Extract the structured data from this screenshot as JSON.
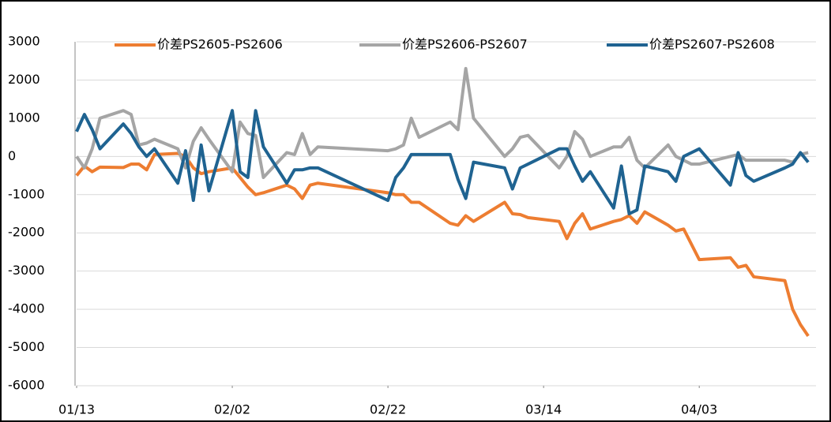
{
  "chart_data": {
    "type": "line",
    "x": [
      0,
      1,
      2,
      3,
      6,
      7,
      8,
      9,
      10,
      13,
      14,
      15,
      16,
      17,
      20,
      21,
      22,
      23,
      24,
      27,
      28,
      29,
      30,
      31,
      40,
      41,
      42,
      43,
      44,
      48,
      49,
      50,
      51,
      55,
      56,
      57,
      58,
      62,
      63,
      64,
      65,
      66,
      69,
      70,
      71,
      72,
      73,
      76,
      77,
      78,
      79,
      80,
      84,
      85,
      86,
      87,
      91,
      92,
      93,
      94
    ],
    "xlim": [
      0,
      95
    ],
    "xticks": [
      {
        "value": 0,
        "label": "01/13"
      },
      {
        "value": 20,
        "label": "02/02"
      },
      {
        "value": 40,
        "label": "02/22"
      },
      {
        "value": 60,
        "label": "03/14"
      },
      {
        "value": 80,
        "label": "04/03"
      }
    ],
    "ylim": [
      -6000,
      3000
    ],
    "yticks": [
      -6000,
      -5000,
      -4000,
      -3000,
      -2000,
      -1000,
      0,
      1000,
      2000,
      3000
    ],
    "grid": true,
    "legend": "top",
    "series": [
      {
        "name": "价差PS2605-PS2606",
        "color": "#ed7d31",
        "values": [
          -500,
          -250,
          -400,
          -280,
          -290,
          -200,
          -200,
          -350,
          50,
          80,
          0,
          -300,
          -450,
          -400,
          -300,
          -550,
          -800,
          -1000,
          -950,
          -750,
          -850,
          -1100,
          -750,
          -700,
          -950,
          -1000,
          -1000,
          -1200,
          -1200,
          -1750,
          -1800,
          -1550,
          -1700,
          -1200,
          -1500,
          -1520,
          -1600,
          -1700,
          -2150,
          -1750,
          -1500,
          -1900,
          -1700,
          -1650,
          -1550,
          -1750,
          -1450,
          -1800,
          -1950,
          -1900,
          -2300,
          -2700,
          -2650,
          -2900,
          -2850,
          -3150,
          -3250,
          -4000,
          -4400,
          -4700
        ]
      },
      {
        "name": "价差PS2606-PS2607",
        "color": "#a5a5a5",
        "values": [
          0,
          -300,
          200,
          1000,
          1200,
          1100,
          300,
          350,
          450,
          200,
          -300,
          400,
          750,
          450,
          -400,
          900,
          600,
          550,
          -550,
          100,
          50,
          600,
          50,
          250,
          150,
          200,
          300,
          1000,
          500,
          900,
          700,
          2300,
          1000,
          0,
          200,
          500,
          550,
          -300,
          0,
          650,
          450,
          0,
          250,
          250,
          500,
          -100,
          -300,
          300,
          0,
          -100,
          -200,
          -200,
          0,
          50,
          -100,
          -100,
          -100,
          -150,
          50,
          100
        ]
      },
      {
        "name": "价差PS2607-PS2608",
        "color": "#1f6391",
        "values": [
          650,
          1100,
          700,
          200,
          850,
          600,
          250,
          0,
          200,
          -700,
          150,
          -1150,
          300,
          -900,
          1200,
          -400,
          -550,
          1200,
          250,
          -700,
          -350,
          -350,
          -300,
          -300,
          -1150,
          -550,
          -300,
          50,
          50,
          50,
          -600,
          -1100,
          -150,
          -300,
          -850,
          -300,
          -200,
          200,
          200,
          -250,
          -650,
          -400,
          -1350,
          -250,
          -1500,
          -1400,
          -250,
          -400,
          -650,
          0,
          100,
          200,
          -750,
          100,
          -500,
          -650,
          -300,
          -200,
          100,
          -150
        ]
      }
    ]
  }
}
